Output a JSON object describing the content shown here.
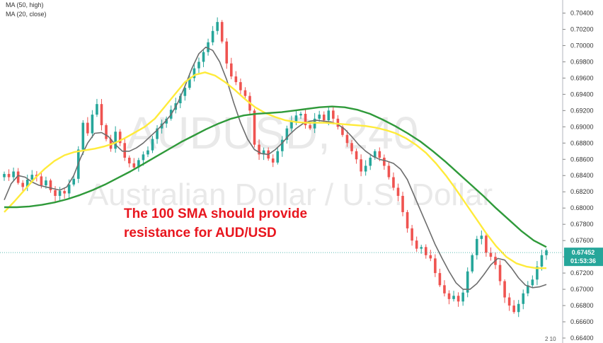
{
  "legend": {
    "ma_high": "MA (50, high)",
    "ma_close": "MA (20, close)"
  },
  "watermark": {
    "symbol": "AUDUSD, 240",
    "description": "Australian Dollar / U.S. Dollar"
  },
  "annotation": {
    "line1": "The 100 SMA should provide",
    "line2": "resistance for AUD/USD"
  },
  "price_tag": {
    "price": "0.67452",
    "countdown": "01:53:36"
  },
  "footer": {
    "icons_text": "2  10"
  },
  "colors": {
    "up": "#26a69a",
    "down": "#ef5350",
    "ma_gray": "#6d6d6d",
    "ma_yellow": "#ffeb3b",
    "ma_green": "#2f9a3a",
    "annotation": "#e8161e",
    "price_tag": "#26a69a"
  },
  "chart_data": {
    "type": "line",
    "title": "",
    "ylim": [
      0.664,
      0.705
    ],
    "y_ticks": [
      "0.70400",
      "0.70200",
      "0.70000",
      "0.69800",
      "0.69600",
      "0.69400",
      "0.69200",
      "0.69000",
      "0.68800",
      "0.68600",
      "0.68400",
      "0.68200",
      "0.68000",
      "0.67800",
      "0.67600",
      "0.67400",
      "0.67200",
      "0.67000",
      "0.66800",
      "0.66600",
      "0.66400"
    ],
    "x_ticks": [],
    "candles_close": [
      0.6842,
      0.6838,
      0.6845,
      0.6831,
      0.6826,
      0.6835,
      0.6841,
      0.6839,
      0.6828,
      0.6834,
      0.6822,
      0.6815,
      0.6821,
      0.6818,
      0.6829,
      0.6836,
      0.6872,
      0.6905,
      0.6892,
      0.6915,
      0.6928,
      0.6902,
      0.6885,
      0.6873,
      0.6894,
      0.688,
      0.6862,
      0.6855,
      0.685,
      0.6859,
      0.6866,
      0.6871,
      0.6885,
      0.6898,
      0.6904,
      0.691,
      0.6921,
      0.6929,
      0.6938,
      0.6948,
      0.696,
      0.6972,
      0.698,
      0.6992,
      0.7004,
      0.7018,
      0.7029,
      0.7005,
      0.6978,
      0.6962,
      0.6955,
      0.6945,
      0.6938,
      0.692,
      0.6878,
      0.6866,
      0.6871,
      0.6861,
      0.6856,
      0.687,
      0.6884,
      0.6898,
      0.6907,
      0.6914,
      0.6916,
      0.6902,
      0.6898,
      0.691,
      0.6915,
      0.6908,
      0.692,
      0.691,
      0.69,
      0.689,
      0.688,
      0.687,
      0.686,
      0.6845,
      0.6852,
      0.6862,
      0.687,
      0.6862,
      0.6852,
      0.6838,
      0.6825,
      0.6815,
      0.6795,
      0.6775,
      0.676,
      0.675,
      0.6752,
      0.6742,
      0.6738,
      0.672,
      0.6705,
      0.6695,
      0.6688,
      0.6692,
      0.6685,
      0.6696,
      0.6722,
      0.6742,
      0.6762,
      0.6766,
      0.6745,
      0.674,
      0.673,
      0.671,
      0.669,
      0.668,
      0.6672,
      0.6682,
      0.6695,
      0.6705,
      0.6712,
      0.6728,
      0.6742,
      0.6748
    ],
    "series": [
      {
        "name": "MA (20, close)",
        "color": "#6d6d6d",
        "values": [
          0.681,
          0.683,
          0.684,
          0.6838,
          0.6832,
          0.6828,
          0.6826,
          0.6824,
          0.6822,
          0.6826,
          0.684,
          0.6862,
          0.688,
          0.6892,
          0.6893,
          0.6888,
          0.6878,
          0.687,
          0.687,
          0.6874,
          0.688,
          0.6888,
          0.6896,
          0.6905,
          0.6915,
          0.693,
          0.695,
          0.6972,
          0.699,
          0.6998,
          0.6994,
          0.698,
          0.6958,
          0.693,
          0.6905,
          0.6885,
          0.6872,
          0.6867,
          0.6866,
          0.6872,
          0.688,
          0.689,
          0.6898,
          0.6904,
          0.6907,
          0.6908,
          0.6907,
          0.6906,
          0.6903,
          0.6897,
          0.6888,
          0.6878,
          0.687,
          0.6864,
          0.686,
          0.6858,
          0.6855,
          0.6848,
          0.6835,
          0.6815,
          0.6795,
          0.6775,
          0.6755,
          0.6738,
          0.6722,
          0.6708,
          0.67,
          0.67,
          0.6707,
          0.6718,
          0.673,
          0.6738,
          0.6736,
          0.6726,
          0.6714,
          0.6705,
          0.6702,
          0.6703,
          0.6706
        ]
      },
      {
        "name": "MA (50, high)",
        "color": "#ffeb3b",
        "values": [
          0.6795,
          0.6808,
          0.6822,
          0.6836,
          0.6848,
          0.6858,
          0.6865,
          0.6869,
          0.6871,
          0.6873,
          0.6876,
          0.688,
          0.6886,
          0.6893,
          0.69,
          0.691,
          0.6925,
          0.694,
          0.6955,
          0.6964,
          0.6967,
          0.6963,
          0.6955,
          0.6945,
          0.6934,
          0.6924,
          0.6917,
          0.6912,
          0.6908,
          0.6906,
          0.6905,
          0.6905,
          0.6905,
          0.6904,
          0.6903,
          0.6902,
          0.6901,
          0.6899,
          0.6896,
          0.6892,
          0.6886,
          0.6878,
          0.6868,
          0.6855,
          0.684,
          0.6823,
          0.6805,
          0.6787,
          0.6769,
          0.6753,
          0.674,
          0.6732,
          0.6728,
          0.6726,
          0.6726
        ]
      },
      {
        "name": "",
        "color": "#2f9a3a",
        "values": [
          0.6801,
          0.6801,
          0.6802,
          0.6804,
          0.6807,
          0.6811,
          0.6816,
          0.6822,
          0.6829,
          0.6837,
          0.6845,
          0.6854,
          0.6863,
          0.6872,
          0.6881,
          0.6889,
          0.6897,
          0.6904,
          0.691,
          0.6914,
          0.6916,
          0.6917,
          0.6918,
          0.692,
          0.6922,
          0.6924,
          0.6925,
          0.6924,
          0.6921,
          0.6916,
          0.6909,
          0.6901,
          0.6892,
          0.6882,
          0.687,
          0.6857,
          0.6843,
          0.6829,
          0.6815,
          0.68,
          0.6786,
          0.6772,
          0.676,
          0.6752
        ]
      }
    ]
  }
}
